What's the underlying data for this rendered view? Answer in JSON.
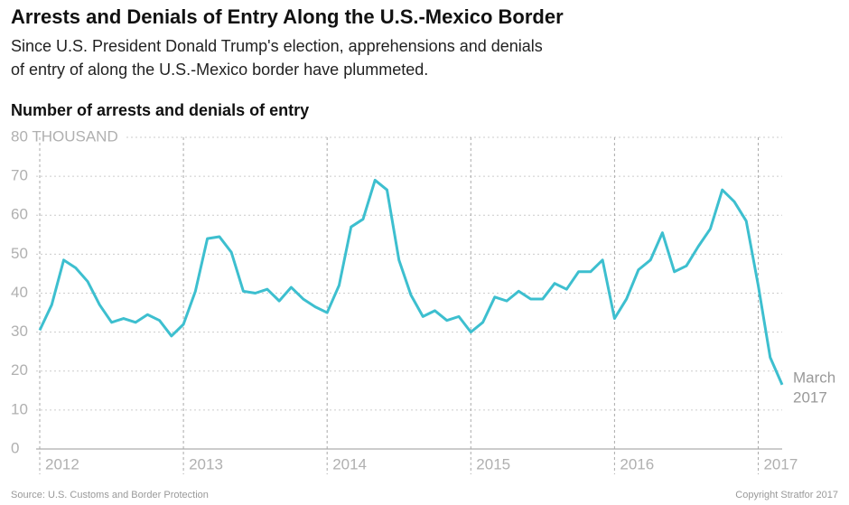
{
  "chart_data": {
    "type": "line",
    "title": "Arrests and Denials of Entry Along the U.S.-Mexico Border",
    "subtitle": [
      "Since U.S. President Donald Trump's election, apprehensions and denials",
      "of entry of along the U.S.-Mexico border have plummeted."
    ],
    "y_label": "Number of arrests and denials of entry",
    "categories": [
      "2012",
      null,
      null,
      null,
      null,
      null,
      null,
      null,
      null,
      null,
      null,
      null,
      "2013",
      null,
      null,
      null,
      null,
      null,
      null,
      null,
      null,
      null,
      null,
      null,
      "2014",
      null,
      null,
      null,
      null,
      null,
      null,
      null,
      null,
      null,
      null,
      null,
      "2015",
      null,
      null,
      null,
      null,
      null,
      null,
      null,
      null,
      null,
      null,
      null,
      "2016",
      null,
      null,
      null,
      null,
      null,
      null,
      null,
      null,
      null,
      null,
      null,
      "2017",
      null,
      null
    ],
    "series": [
      {
        "name": "Arrests and denials of entry",
        "color": "#3dbfcf",
        "values": [
          30.5,
          37,
          48.5,
          46.5,
          43,
          37,
          32.5,
          33.5,
          32.5,
          34.5,
          33,
          29,
          32,
          40.5,
          54,
          54.5,
          50.5,
          40.5,
          40,
          41,
          38,
          41.5,
          38.5,
          36.5,
          35,
          42,
          57,
          59,
          69,
          66.5,
          48.5,
          39.5,
          34,
          35.5,
          33,
          34,
          30,
          32.5,
          39,
          38,
          40.5,
          38.5,
          38.5,
          42.5,
          41,
          45.5,
          45.5,
          48.5,
          33.5,
          38.5,
          46,
          48.5,
          55.5,
          45.5,
          47,
          52,
          56.5,
          66.5,
          63.5,
          58.5,
          42,
          23.5,
          16.5
        ]
      }
    ],
    "ylim": [
      0,
      80
    ],
    "yticks": [
      0,
      10,
      20,
      30,
      40,
      50,
      60,
      70,
      {
        "value": 80,
        "label": "80 THOUSAND"
      }
    ],
    "grid": true,
    "annotation": [
      "March",
      "2017"
    ],
    "source": "Source: U.S. Customs and Border Protection",
    "copyright": "Copyright Stratfor 2017"
  }
}
